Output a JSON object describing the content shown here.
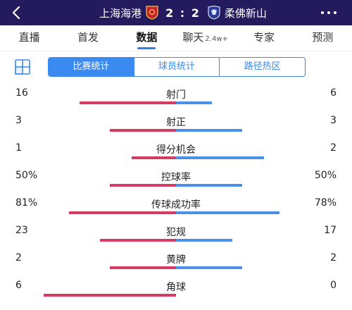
{
  "header": {
    "home_team": "上海海港",
    "score": "2 : 2",
    "away_team": "柔佛新山"
  },
  "tabs": [
    {
      "label": "直播",
      "sup": ""
    },
    {
      "label": "首发",
      "sup": ""
    },
    {
      "label": "数据",
      "sup": ""
    },
    {
      "label": "聊天",
      "sup": "2.4w+"
    },
    {
      "label": "专家",
      "sup": ""
    },
    {
      "label": "预测",
      "sup": ""
    }
  ],
  "active_tab": "数据",
  "segments": [
    "比赛统计",
    "球员统计",
    "路径热区"
  ],
  "active_segment": "比赛统计",
  "colors": {
    "header_bg": "#241a5e",
    "home": "#d63b62",
    "away": "#4a90e8",
    "accent": "#3a8af0"
  },
  "stats": [
    {
      "name": "射门",
      "home": "16",
      "away": "6",
      "home_fraction": 0.727,
      "away_fraction": 0.273
    },
    {
      "name": "射正",
      "home": "3",
      "away": "3",
      "home_fraction": 0.5,
      "away_fraction": 0.5
    },
    {
      "name": "得分机会",
      "home": "1",
      "away": "2",
      "home_fraction": 0.333,
      "away_fraction": 0.667
    },
    {
      "name": "控球率",
      "home": "50%",
      "away": "50%",
      "home_fraction": 0.5,
      "away_fraction": 0.5
    },
    {
      "name": "传球成功率",
      "home": "81%",
      "away": "78%",
      "home_fraction": 0.81,
      "away_fraction": 0.78
    },
    {
      "name": "犯规",
      "home": "23",
      "away": "17",
      "home_fraction": 0.575,
      "away_fraction": 0.425
    },
    {
      "name": "黄牌",
      "home": "2",
      "away": "2",
      "home_fraction": 0.5,
      "away_fraction": 0.5
    },
    {
      "name": "角球",
      "home": "6",
      "away": "0",
      "home_fraction": 1.0,
      "away_fraction": 0.0
    }
  ]
}
